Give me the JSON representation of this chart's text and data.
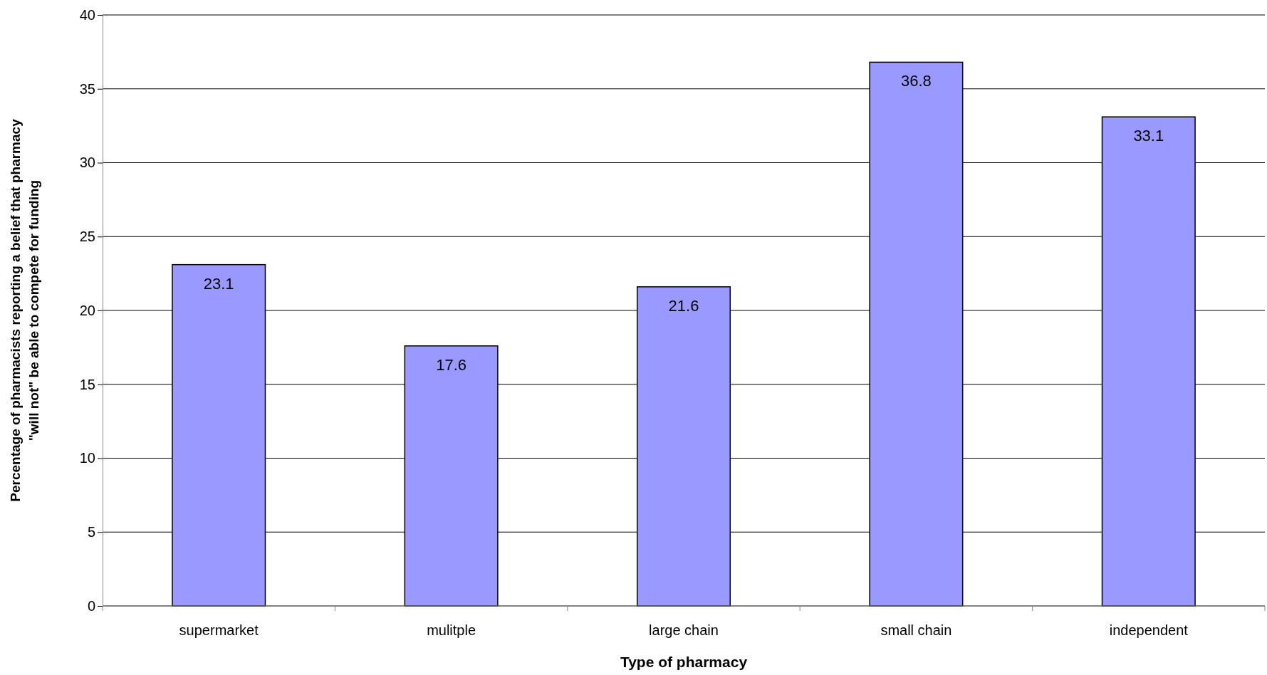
{
  "chart_data": {
    "type": "bar",
    "xlabel": "Type of pharmacy",
    "ylabel": "Percentage of pharmacists reporting a belief that pharmacy\n\"will not\" be able to compete for funding",
    "categories": [
      "supermarket",
      "mulitple",
      "large chain",
      "small chain",
      "independent"
    ],
    "values": [
      23.1,
      17.6,
      21.6,
      36.8,
      33.1
    ],
    "color": "#9999ff",
    "ylim": [
      0,
      40
    ],
    "yticks": [
      0,
      5,
      10,
      15,
      20,
      25,
      30,
      35,
      40
    ],
    "grid": "y",
    "data_labels": true
  }
}
